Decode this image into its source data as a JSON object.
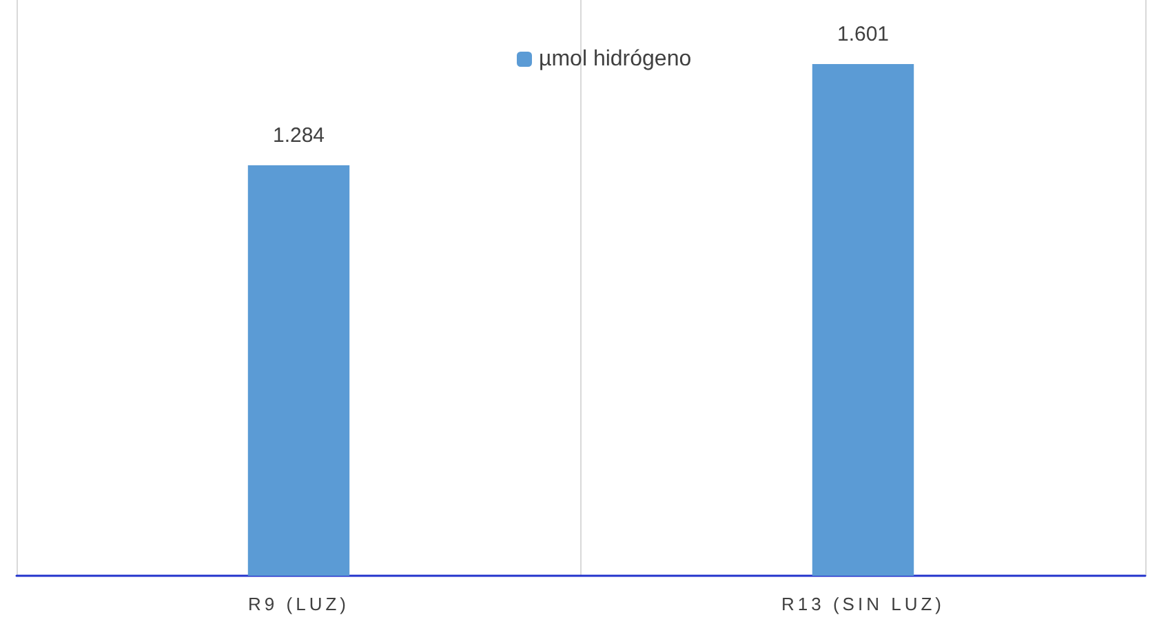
{
  "chart_data": {
    "type": "bar",
    "categories": [
      "R9 (LUZ)",
      "R13 (SIN LUZ)"
    ],
    "series": [
      {
        "name": "µmol hidrógeno",
        "color": "#5b9bd5",
        "values": [
          1.284,
          1.601
        ]
      }
    ],
    "data_labels": true,
    "grid": "x",
    "legend": "top"
  }
}
